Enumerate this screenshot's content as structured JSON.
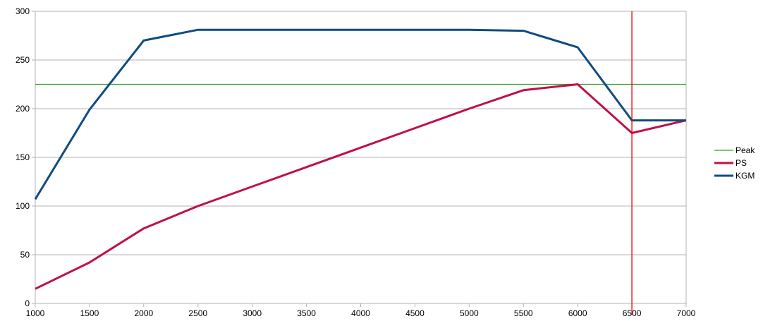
{
  "chart_data": {
    "type": "line",
    "title": "",
    "xlabel": "",
    "ylabel": "",
    "xlim": [
      1000,
      7000
    ],
    "ylim": [
      0,
      300
    ],
    "x_ticks": [
      "1000",
      "1500",
      "2000",
      "2500",
      "3000",
      "3500",
      "4000",
      "4500",
      "5000",
      "5500",
      "6000",
      "6500",
      "7000"
    ],
    "y_ticks": [
      "0",
      "50",
      "100",
      "150",
      "200",
      "250",
      "300"
    ],
    "grid": "horizontal",
    "legend": "right",
    "x": [
      1000,
      1500,
      2000,
      2500,
      3000,
      3500,
      4000,
      4500,
      5000,
      5500,
      6000,
      6500,
      7000
    ],
    "series": [
      {
        "name": "Peak",
        "color": "#33a02c",
        "kind": "hline",
        "value": 225
      },
      {
        "name": "PS",
        "color": "#c0104a",
        "values": [
          15,
          42,
          77,
          100,
          120,
          140,
          160,
          180,
          200,
          219,
          225,
          175,
          188
        ]
      },
      {
        "name": "KGM",
        "color": "#0f4c81",
        "values": [
          107,
          199,
          270,
          281,
          281,
          281,
          281,
          281,
          281,
          280,
          263,
          188,
          188
        ]
      }
    ],
    "vline": {
      "x": 6500,
      "color": "#e00000"
    }
  }
}
